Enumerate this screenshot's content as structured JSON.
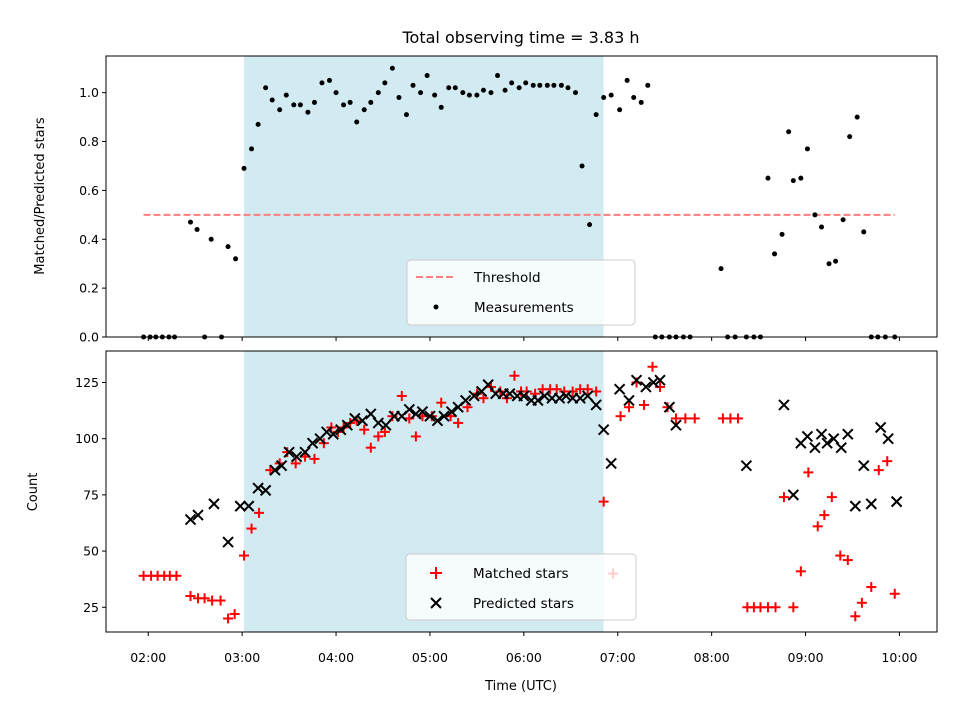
{
  "chart_data": [
    {
      "type": "scatter",
      "title": "Total observing time = 3.83 h",
      "xlabel": "",
      "ylabel": "Matched/Predicted stars",
      "xlim": [
        1.55,
        10.4
      ],
      "ylim": [
        0.0,
        1.15
      ],
      "yticks": [
        0.0,
        0.2,
        0.4,
        0.6,
        0.8,
        1.0
      ],
      "ytick_labels": [
        "0.0",
        "0.2",
        "0.4",
        "0.6",
        "0.8",
        "1.0"
      ],
      "xticks": [
        2,
        3,
        4,
        5,
        6,
        7,
        8,
        9,
        10
      ],
      "shaded_interval": [
        3.02,
        6.85
      ],
      "shade_color": "#add8e6",
      "legend_position": "lower center",
      "threshold": {
        "name": "Threshold",
        "value": 0.5,
        "x_range": [
          1.95,
          9.95
        ],
        "color": "#ff7f7f",
        "style": "dashed"
      },
      "series": [
        {
          "name": "Measurements",
          "color": "#000000",
          "marker": "dot",
          "x": [
            1.95,
            2.02,
            2.08,
            2.15,
            2.22,
            2.28,
            2.45,
            2.52,
            2.6,
            2.67,
            2.78,
            2.85,
            2.93,
            3.02,
            3.1,
            3.17,
            3.25,
            3.32,
            3.4,
            3.47,
            3.55,
            3.62,
            3.7,
            3.77,
            3.85,
            3.93,
            4.0,
            4.08,
            4.15,
            4.22,
            4.3,
            4.37,
            4.45,
            4.52,
            4.6,
            4.67,
            4.75,
            4.82,
            4.9,
            4.97,
            5.05,
            5.12,
            5.2,
            5.27,
            5.35,
            5.42,
            5.5,
            5.57,
            5.65,
            5.72,
            5.8,
            5.87,
            5.95,
            6.02,
            6.1,
            6.17,
            6.25,
            6.32,
            6.4,
            6.47,
            6.55,
            6.62,
            6.7,
            6.77,
            6.85,
            6.93,
            7.02,
            7.1,
            7.17,
            7.25,
            7.32,
            7.4,
            7.47,
            7.55,
            7.62,
            7.7,
            7.77,
            8.1,
            8.17,
            8.25,
            8.37,
            8.45,
            8.52,
            8.6,
            8.67,
            8.75,
            8.82,
            8.87,
            8.95,
            9.02,
            9.1,
            9.17,
            9.25,
            9.32,
            9.4,
            9.47,
            9.55,
            9.62,
            9.7,
            9.77,
            9.85,
            9.95
          ],
          "y": [
            0.0,
            0.0,
            0.0,
            0.0,
            0.0,
            0.0,
            0.47,
            0.44,
            0.0,
            0.4,
            0.0,
            0.37,
            0.32,
            0.69,
            0.77,
            0.87,
            1.02,
            0.97,
            0.93,
            0.99,
            0.95,
            0.95,
            0.92,
            0.96,
            1.04,
            1.05,
            1.0,
            0.95,
            0.96,
            0.88,
            0.93,
            0.96,
            1.0,
            1.04,
            1.1,
            0.98,
            0.91,
            1.03,
            1.0,
            1.07,
            0.99,
            0.94,
            1.02,
            1.02,
            1.0,
            0.99,
            0.99,
            1.01,
            1.0,
            1.07,
            1.01,
            1.04,
            1.02,
            1.04,
            1.03,
            1.03,
            1.03,
            1.03,
            1.03,
            1.02,
            1.0,
            0.7,
            0.46,
            0.91,
            0.98,
            0.99,
            0.93,
            1.05,
            0.98,
            0.96,
            1.03,
            0.0,
            0.0,
            0.0,
            0.0,
            0.0,
            0.0,
            0.28,
            0.0,
            0.0,
            0.0,
            0.0,
            0.0,
            0.65,
            0.34,
            0.42,
            0.84,
            0.64,
            0.65,
            0.77,
            0.5,
            0.45,
            0.3,
            0.31,
            0.48,
            0.82,
            0.9,
            0.43,
            0.0,
            0.0,
            0.0,
            0.0
          ]
        }
      ]
    },
    {
      "type": "scatter",
      "title": "",
      "xlabel": "Time (UTC)",
      "ylabel": "Count",
      "xlim": [
        1.55,
        10.4
      ],
      "ylim": [
        14,
        139
      ],
      "yticks": [
        25,
        50,
        75,
        100,
        125
      ],
      "ytick_labels": [
        "25",
        "50",
        "75",
        "100",
        "125"
      ],
      "xticks": [
        2,
        3,
        4,
        5,
        6,
        7,
        8,
        9,
        10
      ],
      "xtick_labels": [
        "02:00",
        "03:00",
        "04:00",
        "05:00",
        "06:00",
        "07:00",
        "08:00",
        "09:00",
        "10:00"
      ],
      "shaded_interval": [
        3.02,
        6.85
      ],
      "shade_color": "#add8e6",
      "legend_position": "lower center",
      "series": [
        {
          "name": "Matched stars",
          "color": "#ff0000",
          "marker": "plus",
          "x": [
            1.95,
            2.03,
            2.1,
            2.17,
            2.23,
            2.3,
            2.45,
            2.53,
            2.6,
            2.68,
            2.77,
            2.85,
            2.92,
            3.02,
            3.1,
            3.18,
            3.3,
            3.4,
            3.48,
            3.57,
            3.67,
            3.77,
            3.87,
            3.95,
            4.02,
            4.08,
            4.15,
            4.22,
            4.3,
            4.37,
            4.45,
            4.52,
            4.6,
            4.7,
            4.78,
            4.85,
            4.92,
            5.02,
            5.12,
            5.22,
            5.3,
            5.4,
            5.5,
            5.57,
            5.65,
            5.75,
            5.82,
            5.9,
            5.97,
            6.03,
            6.12,
            6.2,
            6.28,
            6.35,
            6.43,
            6.52,
            6.6,
            6.68,
            6.77,
            6.85,
            6.95,
            7.03,
            7.12,
            7.2,
            7.28,
            7.37,
            7.45,
            7.53,
            7.62,
            7.72,
            7.82,
            8.12,
            8.2,
            8.28,
            8.38,
            8.45,
            8.52,
            8.6,
            8.68,
            8.77,
            8.87,
            8.95,
            9.03,
            9.13,
            9.2,
            9.28,
            9.37,
            9.45,
            9.53,
            9.6,
            9.7,
            9.78,
            9.87,
            9.95
          ],
          "y": [
            39,
            39,
            39,
            39,
            39,
            39,
            30,
            29,
            29,
            28,
            28,
            20,
            22,
            48,
            60,
            67,
            86,
            89,
            94,
            89,
            92,
            91,
            98,
            105,
            103,
            105,
            107,
            108,
            104,
            96,
            101,
            103,
            110,
            119,
            109,
            101,
            110,
            110,
            116,
            110,
            107,
            114,
            120,
            118,
            123,
            121,
            118,
            128,
            121,
            121,
            120,
            122,
            122,
            122,
            121,
            121,
            122,
            122,
            121,
            72,
            40,
            110,
            114,
            125,
            115,
            132,
            123,
            114,
            109,
            109,
            109,
            109,
            109,
            109,
            25,
            25,
            25,
            25,
            25,
            74,
            25,
            41,
            85,
            61,
            66,
            74,
            48,
            46,
            21,
            27,
            34,
            86,
            90,
            31
          ]
        },
        {
          "name": "Predicted stars",
          "color": "#000000",
          "marker": "x",
          "x": [
            2.45,
            2.53,
            2.7,
            2.85,
            2.98,
            3.07,
            3.17,
            3.25,
            3.35,
            3.42,
            3.5,
            3.58,
            3.67,
            3.75,
            3.83,
            3.9,
            3.97,
            4.05,
            4.12,
            4.2,
            4.28,
            4.37,
            4.45,
            4.53,
            4.62,
            4.7,
            4.78,
            4.85,
            4.92,
            5.0,
            5.08,
            5.15,
            5.23,
            5.3,
            5.38,
            5.47,
            5.55,
            5.62,
            5.7,
            5.78,
            5.85,
            5.93,
            6.0,
            6.08,
            6.15,
            6.22,
            6.3,
            6.38,
            6.45,
            6.52,
            6.6,
            6.68,
            6.77,
            6.85,
            6.93,
            7.02,
            7.12,
            7.2,
            7.3,
            7.38,
            7.45,
            7.55,
            7.62,
            8.37,
            8.77,
            8.87,
            8.95,
            9.02,
            9.1,
            9.17,
            9.23,
            9.3,
            9.38,
            9.45,
            9.53,
            9.62,
            9.7,
            9.8,
            9.88,
            9.97
          ],
          "y": [
            64,
            66,
            71,
            54,
            70,
            70,
            78,
            77,
            86,
            88,
            94,
            92,
            94,
            98,
            100,
            103,
            102,
            104,
            106,
            109,
            108,
            111,
            107,
            106,
            110,
            110,
            113,
            111,
            112,
            110,
            108,
            110,
            112,
            114,
            117,
            119,
            121,
            124,
            120,
            120,
            120,
            119,
            119,
            117,
            117,
            119,
            118,
            118,
            119,
            118,
            118,
            119,
            115,
            104,
            89,
            122,
            117,
            126,
            123,
            125,
            126,
            114,
            106,
            88,
            115,
            75,
            98,
            101,
            96,
            102,
            98,
            100,
            96,
            102,
            70,
            88,
            71,
            105,
            100,
            72
          ]
        }
      ]
    }
  ]
}
